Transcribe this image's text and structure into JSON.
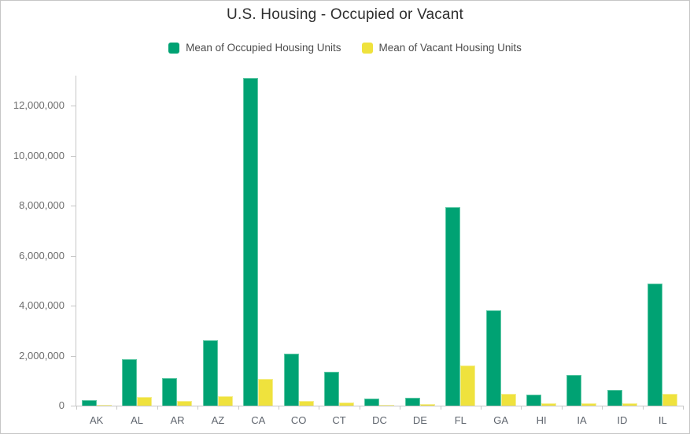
{
  "window": {
    "background": "#ffffff",
    "border_color": "#c6c6c6"
  },
  "styles": {
    "title_color": "#2f2f2f",
    "axis_color": "#c6c6c6",
    "y_tick_label_color": "#6e6e6e",
    "x_label_color": "#5f656e",
    "legend_text_color": "#4c4c4c"
  },
  "chart_data": {
    "type": "bar",
    "title": "U.S. Housing - Occupied or Vacant",
    "xlabel": "",
    "ylabel": "",
    "grid": false,
    "legend_position": "top",
    "categories": [
      "AK",
      "AL",
      "AR",
      "AZ",
      "CA",
      "CO",
      "CT",
      "DC",
      "DE",
      "FL",
      "GA",
      "HI",
      "IA",
      "ID",
      "IL"
    ],
    "series": [
      {
        "name": "Mean of Occupied Housing Units",
        "color": "#00a273",
        "border_color": "#5ec9a6",
        "values": [
          220000,
          1860000,
          1100000,
          2620000,
          13100000,
          2090000,
          1345000,
          270000,
          325000,
          7930000,
          3800000,
          430000,
          1230000,
          620000,
          4880000
        ]
      },
      {
        "name": "Mean of Vacant Housing Units",
        "color": "#efe23d",
        "border_color": "#f5ee90",
        "values": [
          45000,
          360000,
          180000,
          370000,
          1060000,
          190000,
          130000,
          40000,
          75000,
          1600000,
          465000,
          85000,
          105000,
          80000,
          460000
        ]
      }
    ],
    "ylim": [
      0,
      13200000
    ],
    "yticks": [
      {
        "value": 0,
        "label": "0"
      },
      {
        "value": 2000000,
        "label": "2,000,000"
      },
      {
        "value": 4000000,
        "label": "4,000,000"
      },
      {
        "value": 6000000,
        "label": "6,000,000"
      },
      {
        "value": 8000000,
        "label": "8,000,000"
      },
      {
        "value": 10000000,
        "label": "10,000,000"
      },
      {
        "value": 12000000,
        "label": "12,000,000"
      }
    ]
  }
}
